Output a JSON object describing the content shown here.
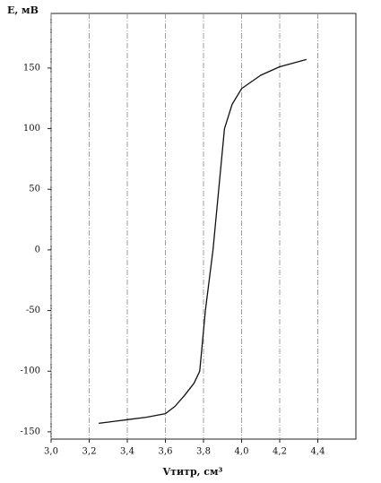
{
  "chart_data": {
    "type": "line",
    "y_label": "E, мВ",
    "x_label": "Vтитр, см³",
    "x": [
      3.25,
      3.4,
      3.5,
      3.6,
      3.65,
      3.7,
      3.75,
      3.78,
      3.81,
      3.85,
      3.88,
      3.91,
      3.95,
      4.0,
      4.1,
      4.2,
      4.34
    ],
    "values": [
      -143,
      -140,
      -138,
      -135,
      -129,
      -120,
      -110,
      -100,
      -50,
      0,
      50,
      100,
      120,
      133,
      144,
      151,
      157
    ],
    "color": "#111111",
    "xlim": [
      3.0,
      4.6
    ],
    "ylim": [
      -156,
      195
    ],
    "xticks": [
      {
        "value": 3.0,
        "label": "3,0"
      },
      {
        "value": 3.2,
        "label": "3,2"
      },
      {
        "value": 3.4,
        "label": "3,4"
      },
      {
        "value": 3.6,
        "label": "3,6"
      },
      {
        "value": 3.8,
        "label": "3,8"
      },
      {
        "value": 4.0,
        "label": "4,0"
      },
      {
        "value": 4.2,
        "label": "4,2"
      },
      {
        "value": 4.4,
        "label": "4,4"
      }
    ],
    "yticks": [
      -150,
      -100,
      -50,
      0,
      50,
      100,
      150
    ],
    "grid": true
  }
}
